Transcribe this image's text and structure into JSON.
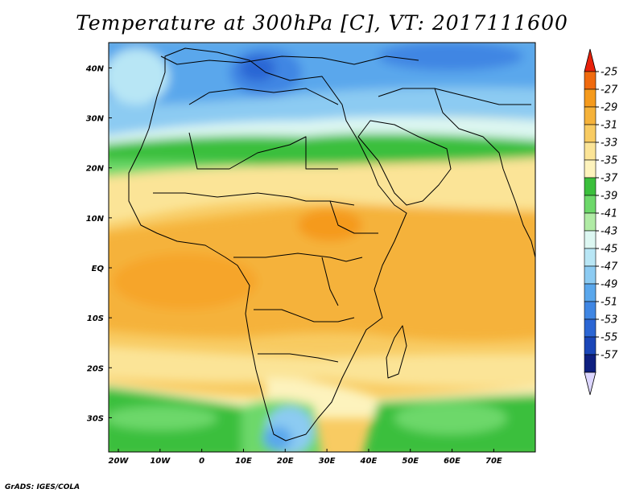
{
  "title": "Temperature at 300hPa [C], VT: 2017111600",
  "footer": "GrADS: IGES/COLA",
  "map": {
    "region": "Africa / Middle East / Arabian Sea",
    "projection": "latlon",
    "lon_range": [
      -25,
      80
    ],
    "lat_range": [
      -37,
      45
    ],
    "field": "Temperature at 300hPa",
    "units": "C",
    "x_ticks": [
      {
        "value": -20,
        "label": "20W"
      },
      {
        "value": -10,
        "label": "10W"
      },
      {
        "value": 0,
        "label": "0"
      },
      {
        "value": 10,
        "label": "10E"
      },
      {
        "value": 20,
        "label": "20E"
      },
      {
        "value": 30,
        "label": "30E"
      },
      {
        "value": 40,
        "label": "40E"
      },
      {
        "value": 50,
        "label": "50E"
      },
      {
        "value": 60,
        "label": "60E"
      },
      {
        "value": 70,
        "label": "70E"
      }
    ],
    "y_ticks": [
      {
        "value": 40,
        "label": "40N"
      },
      {
        "value": 30,
        "label": "30N"
      },
      {
        "value": 20,
        "label": "20N"
      },
      {
        "value": 10,
        "label": "10N"
      },
      {
        "value": 0,
        "label": "EQ"
      },
      {
        "value": -10,
        "label": "10S"
      },
      {
        "value": -20,
        "label": "20S"
      },
      {
        "value": -30,
        "label": "30S"
      }
    ]
  },
  "colorbar": {
    "labels": [
      "-25",
      "-27",
      "-29",
      "-31",
      "-33",
      "-35",
      "-37",
      "-39",
      "-41",
      "-43",
      "-45",
      "-47",
      "-49",
      "-51",
      "-53",
      "-55",
      "-57"
    ],
    "top_arrow_color": "#e8210a",
    "bottom_arrow_color": "#dcd6ff",
    "segments": [
      "#f06a0e",
      "#f59a1c",
      "#f5b23a",
      "#f8cb62",
      "#fbe497",
      "#fdf3bd",
      "#3bbf3c",
      "#6dd86a",
      "#b0eba5",
      "#ddf7f2",
      "#b8e6f5",
      "#8ccbf2",
      "#5aa7ec",
      "#3f86e3",
      "#2b66d4",
      "#1a46b8",
      "#0e1f80"
    ]
  }
}
